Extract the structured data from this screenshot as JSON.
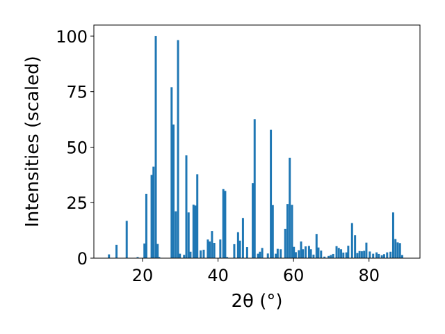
{
  "chart_data": {
    "type": "bar",
    "title": "",
    "xlabel": "2θ (°)",
    "ylabel": "Intensities (scaled)",
    "xlim": [
      7.1,
      93.5
    ],
    "ylim": [
      0,
      105
    ],
    "xticks": [
      20,
      40,
      60,
      80
    ],
    "yticks": [
      0,
      25,
      50,
      75,
      100
    ],
    "bar_width": 0.55,
    "grid": false,
    "legend": "none",
    "bar_color": "#1f77b4",
    "series": [
      {
        "x": [
          11.1,
          13.1,
          15.8,
          18.7,
          20.5,
          21.0,
          22.4,
          22.9,
          23.5,
          24.0,
          24.4,
          27.7,
          28.2,
          28.8,
          29.4,
          29.9,
          31.0,
          31.6,
          32.2,
          32.7,
          33.5,
          34.0,
          34.5,
          35.4,
          36.2,
          37.3,
          37.8,
          38.4,
          39.0,
          40.6,
          41.4,
          41.9,
          42.4,
          44.3,
          45.3,
          45.8,
          46.6,
          47.7,
          49.2,
          49.7,
          50.6,
          51.1,
          51.7,
          53.2,
          54.0,
          54.5,
          55.3,
          55.8,
          56.6,
          57.8,
          58.4,
          59.0,
          59.6,
          60.1,
          60.6,
          61.4,
          62.0,
          62.5,
          63.2,
          64.1,
          64.6,
          65.3,
          66.1,
          66.6,
          67.3,
          68.2,
          69.3,
          69.9,
          70.5,
          71.4,
          72.0,
          72.6,
          73.2,
          74.0,
          74.5,
          75.5,
          76.3,
          76.9,
          77.5,
          78.1,
          78.7,
          79.3,
          80.2,
          81.1,
          82.0,
          82.6,
          83.4,
          84.0,
          84.8,
          85.7,
          86.4,
          87.0,
          87.6,
          88.2,
          88.8
        ],
        "values": [
          1.7,
          6.0,
          16.8,
          0.5,
          6.6,
          28.9,
          37.5,
          41.2,
          100.0,
          6.4,
          0.5,
          77.0,
          60.2,
          21.1,
          98.2,
          2.0,
          1.5,
          46.3,
          20.6,
          2.9,
          24.1,
          23.7,
          37.8,
          3.5,
          3.8,
          8.4,
          7.5,
          12.2,
          6.9,
          8.4,
          31.1,
          30.3,
          0.5,
          6.3,
          11.7,
          7.9,
          18.1,
          5.0,
          33.8,
          62.6,
          2.0,
          2.9,
          4.6,
          2.1,
          57.8,
          23.9,
          2.0,
          4.2,
          4.0,
          13.2,
          24.4,
          45.2,
          24.0,
          5.1,
          2.7,
          3.6,
          7.5,
          4.0,
          5.3,
          5.5,
          4.0,
          1.6,
          10.9,
          4.8,
          3.4,
          0.7,
          1.0,
          1.4,
          1.9,
          5.4,
          4.6,
          4.0,
          2.5,
          2.6,
          5.6,
          15.8,
          10.3,
          2.3,
          3.2,
          3.1,
          3.3,
          7.0,
          3.0,
          2.0,
          2.6,
          1.9,
          1.3,
          1.8,
          2.6,
          2.9,
          20.6,
          8.6,
          7.1,
          6.8,
          1.4
        ]
      }
    ]
  }
}
